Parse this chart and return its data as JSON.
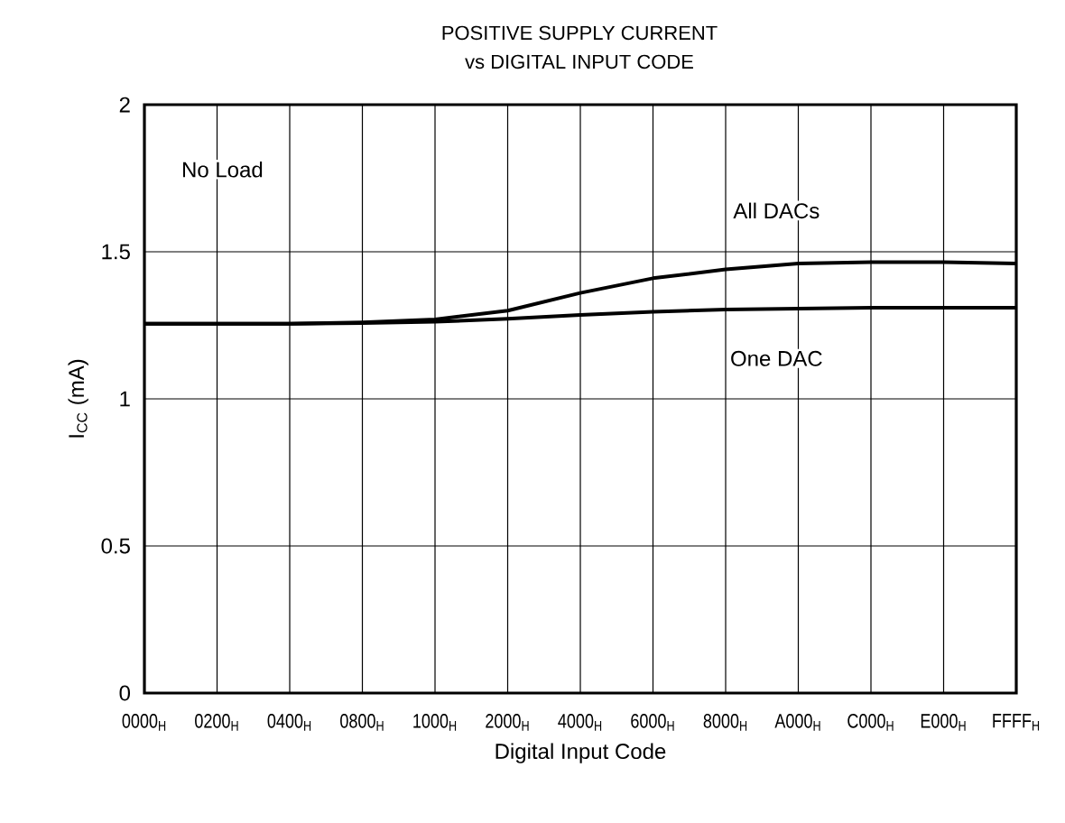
{
  "chart_data": {
    "type": "line",
    "title": "POSITIVE SUPPLY CURRENT",
    "subtitle": "vs DIGITAL INPUT CODE",
    "xlabel": "Digital Input Code",
    "ylabel": "I$_{CC}$ (mA)",
    "categories": [
      "0000$_{H}$",
      "0200$_{H}$",
      "0400$_{H}$",
      "0800$_{H}$",
      "1000$_{H}$",
      "2000$_{H}$",
      "4000$_{H}$",
      "6000$_{H}$",
      "8000$_{H}$",
      "A000$_{H}$",
      "C000$_{H}$",
      "E000$_{H}$",
      "FFFF$_{H}$"
    ],
    "series": [
      {
        "name": "All DACs",
        "color": "#000000",
        "values": [
          1.255,
          1.255,
          1.255,
          1.26,
          1.27,
          1.3,
          1.36,
          1.41,
          1.44,
          1.46,
          1.465,
          1.465,
          1.46
        ]
      },
      {
        "name": "One DAC",
        "color": "#000000",
        "values": [
          1.255,
          1.255,
          1.255,
          1.258,
          1.262,
          1.272,
          1.285,
          1.296,
          1.304,
          1.307,
          1.31,
          1.31,
          1.31
        ]
      }
    ],
    "ylim": [
      0,
      2
    ],
    "yticks": [
      0,
      0.5,
      1,
      1.5,
      2
    ],
    "grid": true,
    "marker": "none",
    "line_style": "solid",
    "annotations": [
      "No Load"
    ]
  }
}
